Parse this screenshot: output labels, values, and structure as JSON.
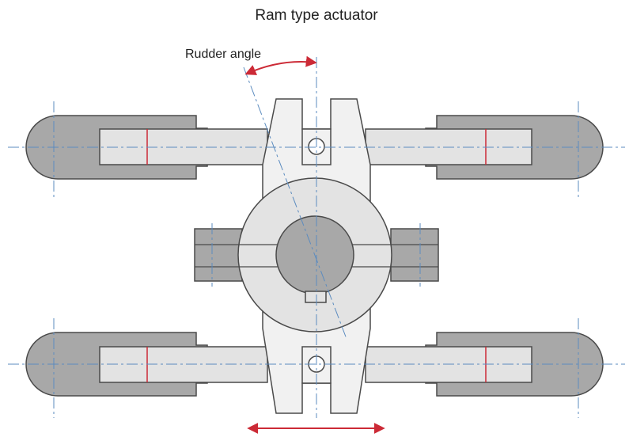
{
  "title": "Ram type actuator",
  "labels": {
    "rudder_angle": "Rudder angle"
  },
  "colors": {
    "cylinder_fill": "#a8a8a8",
    "ram_fill": "#e3e3e3",
    "body_fill": "#f1f1f1",
    "block_fill": "#a8a8a8",
    "hub_fill": "#e3e3e3",
    "stock_fill": "#a8a8a8",
    "outline": "#4a4a4a",
    "centerline": "#5b8bbf",
    "piston_mark": "#cc2a36",
    "arrow": "#cc2a36"
  }
}
